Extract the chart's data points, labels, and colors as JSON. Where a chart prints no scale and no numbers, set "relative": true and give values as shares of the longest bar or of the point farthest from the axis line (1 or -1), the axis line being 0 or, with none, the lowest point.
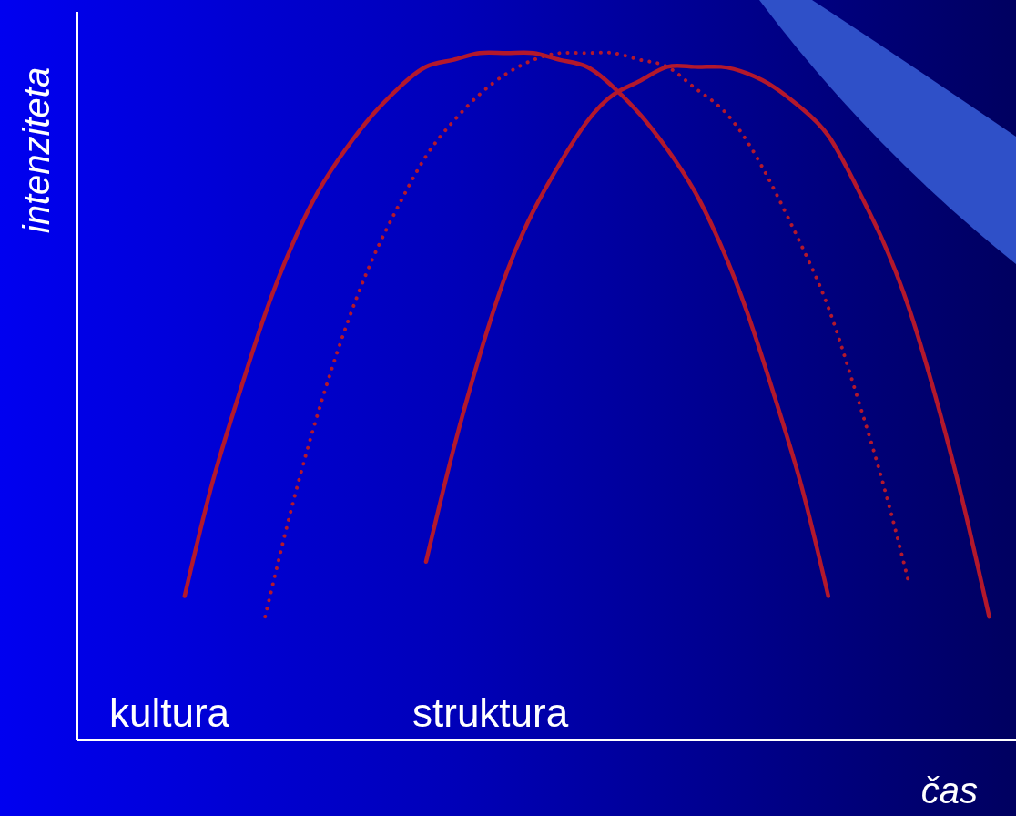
{
  "chart_data": {
    "type": "line",
    "relative": true,
    "xlabel": "čas",
    "ylabel": "intenziteta",
    "marker": "none",
    "categories": [
      null,
      null,
      null,
      null,
      null,
      null,
      null,
      null,
      null,
      null,
      null,
      null,
      null,
      null,
      null,
      null,
      null,
      null,
      null,
      null,
      null,
      null,
      null,
      null,
      null,
      null,
      null,
      null,
      null,
      null,
      null,
      null,
      null,
      null,
      null,
      null
    ],
    "series": [
      {
        "color": "#b3182c",
        "line_style": "solid",
        "values": [
          null,
          null,
          null,
          null,
          0.21,
          0.37,
          0.5,
          0.62,
          0.72,
          0.8,
          0.86,
          0.91,
          0.95,
          0.98,
          0.99,
          1.0,
          1.0,
          1.0,
          0.99,
          0.98,
          0.95,
          0.91,
          0.86,
          0.8,
          0.72,
          0.62,
          0.5,
          0.37,
          0.21,
          null,
          null,
          null,
          null,
          null,
          null,
          null
        ]
      },
      {
        "color": "#b3182c",
        "line_style": "dotted",
        "values": [
          null,
          null,
          null,
          null,
          null,
          null,
          null,
          0.18,
          0.34,
          0.48,
          0.6,
          0.7,
          0.78,
          0.85,
          0.9,
          0.94,
          0.97,
          0.99,
          1.0,
          1.0,
          1.0,
          0.99,
          0.98,
          0.95,
          0.92,
          0.87,
          0.8,
          0.72,
          0.63,
          0.51,
          0.38,
          0.23,
          null,
          null,
          null,
          null
        ]
      },
      {
        "color": "#b3182c",
        "line_style": "solid",
        "values": [
          null,
          null,
          null,
          null,
          null,
          null,
          null,
          null,
          null,
          null,
          null,
          null,
          null,
          0.26,
          0.42,
          0.56,
          0.68,
          0.77,
          0.84,
          0.9,
          0.94,
          0.96,
          0.98,
          0.98,
          0.98,
          0.97,
          0.95,
          0.92,
          0.88,
          0.81,
          0.73,
          0.63,
          0.5,
          0.35,
          0.18,
          null
        ]
      }
    ],
    "annotations": [
      "kultura",
      "struktura"
    ]
  }
}
